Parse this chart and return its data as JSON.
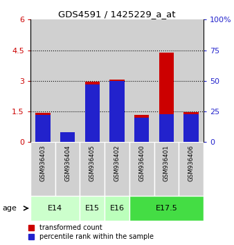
{
  "title": "GDS4591 / 1425229_a_at",
  "samples": [
    "GSM936403",
    "GSM936404",
    "GSM936405",
    "GSM936402",
    "GSM936400",
    "GSM936401",
    "GSM936406"
  ],
  "transformed_count": [
    1.42,
    0.02,
    2.95,
    3.07,
    1.32,
    4.38,
    1.47
  ],
  "percentile_rank_pct": [
    22,
    8,
    47,
    50,
    20,
    23,
    23
  ],
  "red_color": "#cc0000",
  "blue_color": "#2222cc",
  "left_yticks": [
    0,
    1.5,
    3.0,
    4.5,
    6
  ],
  "left_ylabels": [
    "0",
    "1.5",
    "3",
    "4.5",
    "6"
  ],
  "right_yticks": [
    0,
    25,
    50,
    75,
    100
  ],
  "right_ylabels": [
    "0",
    "25",
    "50",
    "75",
    "100%"
  ],
  "ylim": [
    0,
    6
  ],
  "right_ylim": [
    0,
    100
  ],
  "age_groups": [
    {
      "label": "E14",
      "start": 0,
      "end": 2,
      "color": "#ccffcc"
    },
    {
      "label": "E15",
      "start": 2,
      "end": 3,
      "color": "#ccffcc"
    },
    {
      "label": "E16",
      "start": 3,
      "end": 4,
      "color": "#bbffbb"
    },
    {
      "label": "E17.5",
      "start": 4,
      "end": 7,
      "color": "#44dd44"
    }
  ],
  "bar_width": 0.6,
  "bg_color": "#d0d0d0",
  "plot_bg": "#ffffff",
  "legend_red": "transformed count",
  "legend_blue": "percentile rank within the sample",
  "age_label": "age"
}
